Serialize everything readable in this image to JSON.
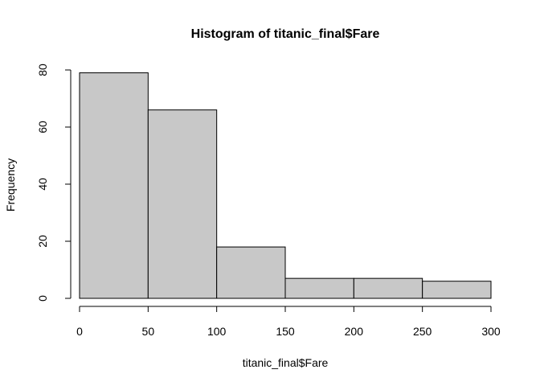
{
  "chart_data": {
    "type": "bar",
    "title": "Histogram of titanic_final$Fare",
    "xlabel": "titanic_final$Fare",
    "ylabel": "Frequency",
    "bins": [
      {
        "start": 0,
        "end": 50,
        "count": 79
      },
      {
        "start": 50,
        "end": 100,
        "count": 66
      },
      {
        "start": 100,
        "end": 150,
        "count": 18
      },
      {
        "start": 150,
        "end": 200,
        "count": 7
      },
      {
        "start": 200,
        "end": 250,
        "count": 7
      },
      {
        "start": 250,
        "end": 300,
        "count": 6
      }
    ],
    "xlim": [
      0,
      300
    ],
    "ylim": [
      0,
      80
    ],
    "x_ticks": [
      "0",
      "50",
      "100",
      "150",
      "200",
      "250",
      "300"
    ],
    "y_ticks": [
      "0",
      "20",
      "40",
      "60",
      "80"
    ],
    "grid": false,
    "bar_color": "#c8c8c8",
    "edge_color": "#000000"
  }
}
